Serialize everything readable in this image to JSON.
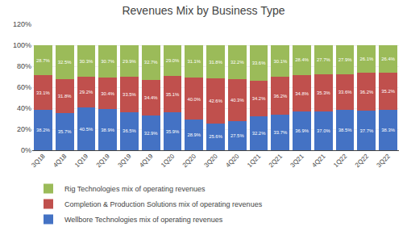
{
  "chart_data": {
    "type": "bar",
    "title": "Revenues Mix by Business Type",
    "stacked": true,
    "data_labels": true,
    "grid": true,
    "legend": "bottom",
    "categories": [
      "3Q18",
      "4Q18",
      "1Q19",
      "2Q19",
      "3Q19",
      "4Q19",
      "1Q20",
      "2Q20",
      "3Q20",
      "4Q20",
      "1Q21",
      "2Q21",
      "3Q21",
      "4Q21",
      "1Q22",
      "2Q22",
      "3Q22"
    ],
    "series": [
      {
        "name": "Wellbore Technologies mix of operating revenues",
        "color": "#4472C4",
        "values": [
          38.2,
          35.7,
          40.5,
          38.9,
          36.5,
          32.9,
          35.9,
          28.9,
          25.6,
          27.5,
          32.2,
          33.7,
          36.9,
          37.0,
          38.5,
          37.7,
          38.3
        ],
        "value_labels": [
          "38.2%",
          "35.7%",
          "40.5%",
          "38.9%",
          "36.5%",
          "32.9%",
          "35.9%",
          "28.9%",
          "25.6%",
          "27.5%",
          "32.2%",
          "33.7%",
          "36.9%",
          "37.0%",
          "38.5%",
          "37.7%",
          "38.3%"
        ]
      },
      {
        "name": "Completion & Production Solutions mix of operating revenues",
        "color": "#C0504D",
        "values": [
          33.1,
          31.8,
          29.2,
          30.4,
          33.5,
          34.4,
          35.1,
          40.0,
          42.6,
          40.3,
          34.2,
          36.2,
          34.8,
          35.3,
          33.6,
          36.2,
          35.2
        ],
        "value_labels": [
          "33.1%",
          "31.8%",
          "29.2%",
          "30.4%",
          "33.5%",
          "34.4%",
          "35.1%",
          "40.0%",
          "42.6%",
          "40.3%",
          "34.2%",
          "36.2%",
          "34.8%",
          "35.3%",
          "33.6%",
          "36.2%",
          "35.2%"
        ]
      },
      {
        "name": "Rig Technologies mix of operating revenues",
        "color": "#9BBB59",
        "values": [
          28.7,
          32.5,
          30.3,
          30.7,
          29.9,
          32.7,
          29.0,
          31.1,
          31.8,
          32.2,
          33.6,
          30.1,
          28.4,
          27.7,
          27.9,
          26.1,
          26.4
        ],
        "value_labels": [
          "28.7%",
          "32.5%",
          "30.3%",
          "30.7%",
          "29.9%",
          "32.7%",
          "29.0%",
          "31.1%",
          "31.8%",
          "32.2%",
          "33.6%",
          "30.1%",
          "28.4%",
          "27.7%",
          "27.9%",
          "26.1%",
          "26.4%"
        ]
      }
    ],
    "ylim": [
      0,
      120
    ],
    "yticks": [
      {
        "value": 0,
        "label": "0%"
      },
      {
        "value": 20,
        "label": "20%"
      },
      {
        "value": 40,
        "label": "40%"
      },
      {
        "value": 60,
        "label": "60%"
      },
      {
        "value": 80,
        "label": "80%"
      },
      {
        "value": 100,
        "label": "100%"
      },
      {
        "value": 120,
        "label": "120%"
      }
    ]
  }
}
